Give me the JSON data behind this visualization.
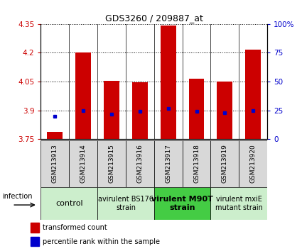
{
  "title": "GDS3260 / 209887_at",
  "samples": [
    "GSM213913",
    "GSM213914",
    "GSM213915",
    "GSM213916",
    "GSM213917",
    "GSM213918",
    "GSM213919",
    "GSM213920"
  ],
  "red_values": [
    3.79,
    4.2,
    4.055,
    4.045,
    4.34,
    4.065,
    4.05,
    4.215
  ],
  "blue_percentile": [
    20,
    25,
    22,
    24,
    27,
    24,
    23,
    25
  ],
  "ylim_left": [
    3.75,
    4.35
  ],
  "yticks_left": [
    3.75,
    3.9,
    4.05,
    4.2,
    4.35
  ],
  "yticks_right": [
    0,
    25,
    50,
    75,
    100
  ],
  "ytick_labels_right": [
    "0",
    "25",
    "50",
    "75",
    "100%"
  ],
  "bar_color": "#cc0000",
  "dot_color": "#0000cc",
  "bar_width": 0.55,
  "groups": [
    {
      "label": "control",
      "samples": [
        0,
        1
      ],
      "color": "#cceecc",
      "bold": false,
      "fontsize": 8
    },
    {
      "label": "avirulent BS176\nstrain",
      "samples": [
        2,
        3
      ],
      "color": "#cceecc",
      "bold": false,
      "fontsize": 7
    },
    {
      "label": "virulent M90T\nstrain",
      "samples": [
        4,
        5
      ],
      "color": "#44cc44",
      "bold": true,
      "fontsize": 8
    },
    {
      "label": "virulent mxiE\nmutant strain",
      "samples": [
        6,
        7
      ],
      "color": "#cceecc",
      "bold": false,
      "fontsize": 7
    }
  ],
  "infection_label": "infection",
  "legend_red": "transformed count",
  "legend_blue": "percentile rank within the sample",
  "bg_color": "#ffffff",
  "left_tick_color": "#cc0000",
  "right_tick_color": "#0000cc",
  "xtick_bg": "#d8d8d8"
}
